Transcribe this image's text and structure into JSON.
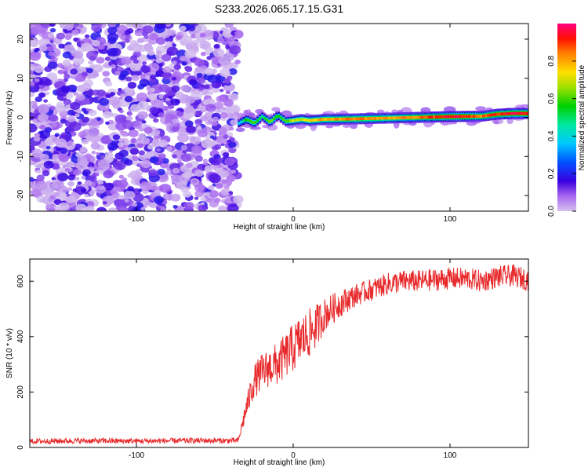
{
  "figure": {
    "title": "S233.2026.065.17.15.G31"
  },
  "chart_data": [
    {
      "type": "heatmap",
      "xlabel": "Height of straight line (km)",
      "ylabel": "Frequency (Hz)",
      "xlim": [
        -168,
        150
      ],
      "ylim": [
        -24,
        24
      ],
      "x_ticks": [
        -100,
        0,
        100
      ],
      "y_ticks": [
        -20,
        -10,
        0,
        10,
        20
      ],
      "noise_region_x": [
        -168,
        -35
      ],
      "signal_region_x": [
        -35,
        150
      ],
      "signal_ridge": {
        "x": [
          -35,
          -30,
          -25,
          -20,
          -15,
          -10,
          -5,
          0,
          5,
          10,
          20,
          40,
          60,
          80,
          100,
          120,
          130,
          140,
          150
        ],
        "frequency": [
          -1.5,
          -0.5,
          -1.5,
          0.2,
          -1.2,
          0.5,
          -1.0,
          -0.8,
          -0.5,
          -0.8,
          -0.5,
          -0.4,
          -0.2,
          0.0,
          0.2,
          0.3,
          0.8,
          1.0,
          1.0
        ],
        "amplitude": [
          0.35,
          0.55,
          0.6,
          0.5,
          0.65,
          0.55,
          0.6,
          0.7,
          0.7,
          0.75,
          0.8,
          0.85,
          0.8,
          0.85,
          0.95,
          0.85,
          0.9,
          0.95,
          0.95
        ]
      },
      "colorbar": {
        "label": "Normalized spectral amplitude",
        "range": [
          0,
          1
        ],
        "ticks": [
          "0.0",
          "0.2",
          "0.4",
          "0.6",
          "0.8"
        ]
      }
    },
    {
      "type": "line",
      "xlabel": "Height of straight line (km)",
      "ylabel": "SNR (10 * v/v)",
      "xlim": [
        -168,
        150
      ],
      "ylim": [
        0,
        680
      ],
      "x_ticks": [
        -100,
        0,
        100
      ],
      "y_ticks": [
        0,
        200,
        400,
        600
      ],
      "series": [
        {
          "name": "SNR",
          "color": "#e8292b",
          "x": [
            -168,
            -140,
            -100,
            -60,
            -35,
            -30,
            -25,
            -20,
            -15,
            -10,
            -5,
            0,
            5,
            10,
            15,
            20,
            30,
            40,
            50,
            60,
            70,
            80,
            90,
            100,
            110,
            120,
            130,
            140,
            150
          ],
          "values": [
            22,
            24,
            23,
            25,
            24,
            140,
            240,
            270,
            290,
            300,
            330,
            360,
            390,
            410,
            440,
            480,
            520,
            550,
            570,
            590,
            600,
            600,
            605,
            610,
            610,
            600,
            615,
            620,
            605
          ],
          "noise_amplitude": [
            10,
            10,
            10,
            10,
            10,
            40,
            60,
            70,
            70,
            80,
            80,
            90,
            90,
            90,
            80,
            60,
            50,
            40,
            40,
            40,
            40,
            40,
            40,
            40,
            40,
            40,
            40,
            40,
            40
          ]
        }
      ]
    }
  ]
}
